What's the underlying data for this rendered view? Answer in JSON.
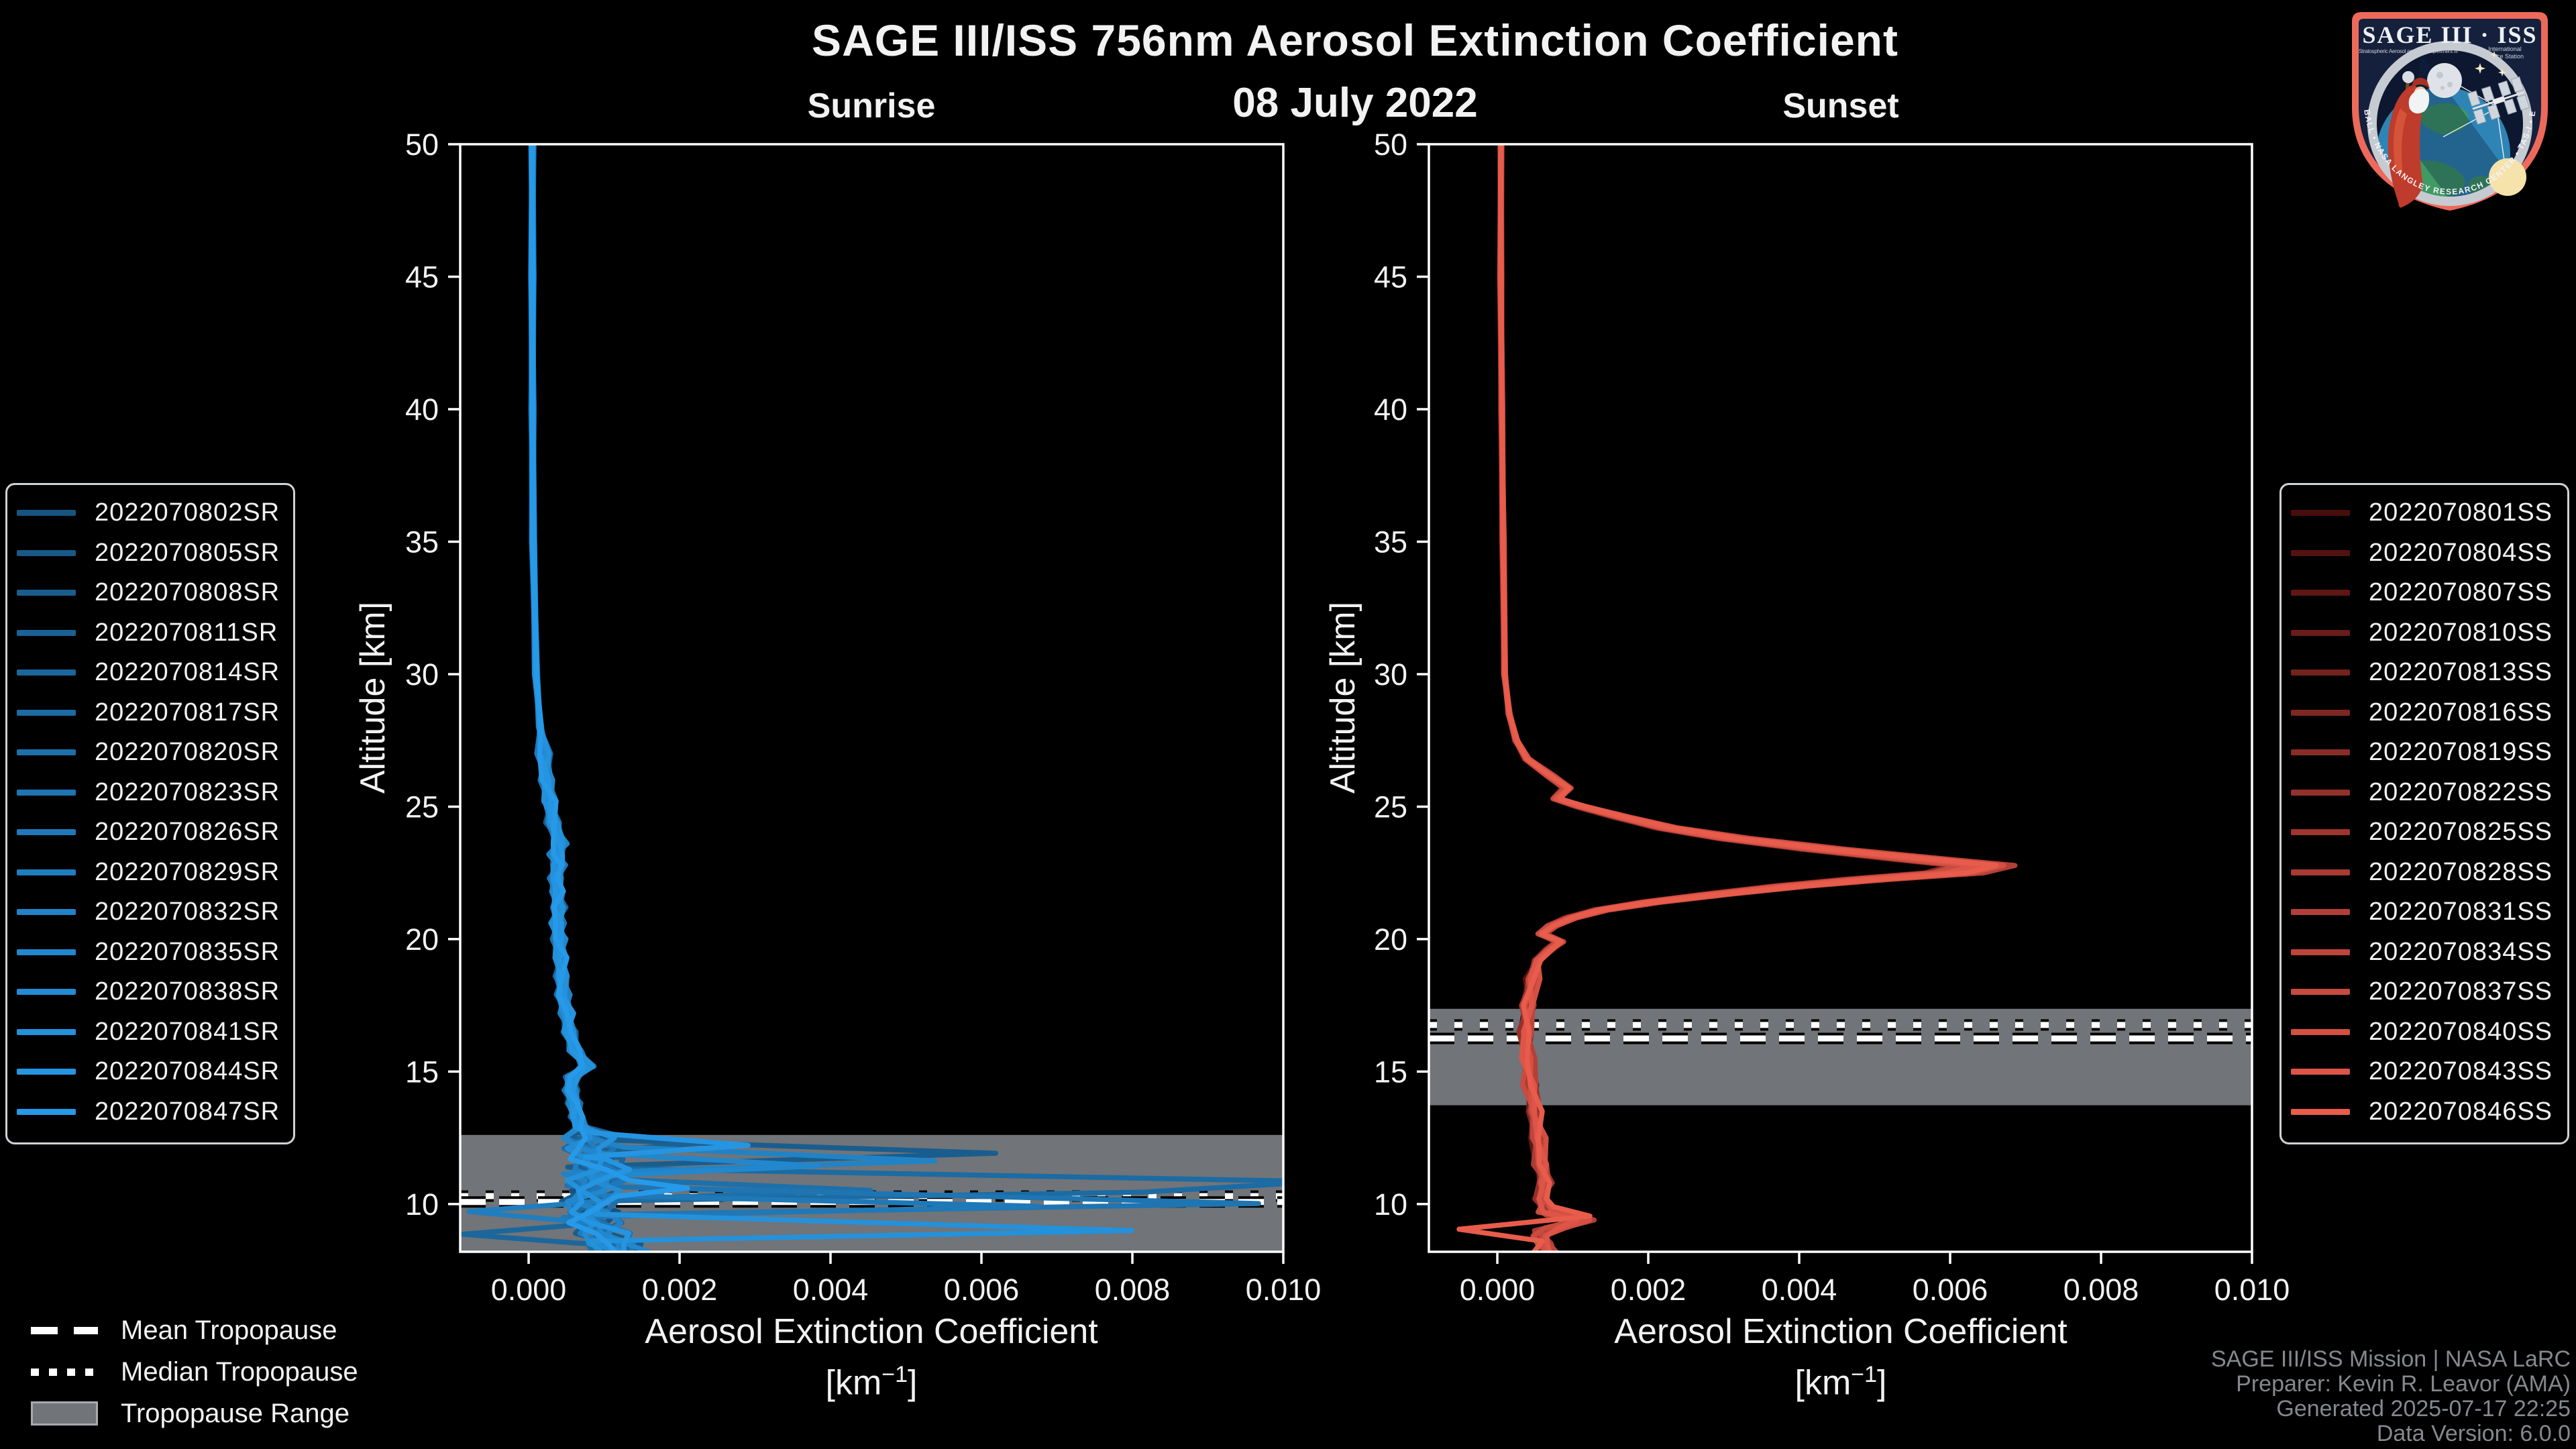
{
  "title": "SAGE III/ISS 756nm Aerosol Extinction Coefficient",
  "subtitle": "08 July 2022",
  "watermark": {
    "line1": "SAGE III/ISS Mission | NASA LaRC",
    "line2": "Preparer: Kevin R. Leavor (AMA)",
    "line3": "Generated 2025-07-17 22:25",
    "line4": "Data Version: 6.0.0"
  },
  "tropo_legend": {
    "items": [
      {
        "label": "Mean Tropopause"
      },
      {
        "label": "Median Tropopause"
      },
      {
        "label": "Tropopause Range"
      }
    ]
  },
  "logo": {
    "title": "SAGE III · ISS",
    "sub_left": "Stratospheric Aerosol and Gas Experiment III",
    "sub_right1": "International",
    "sub_right2": "Space Station",
    "ring_text": "BALL • NASA LANGLEY RESEARCH CENTER • TAS-I • ESA"
  },
  "axes": {
    "xlabel": "Aerosol Extinction Coefficient",
    "xunit_pre": "[km",
    "xunit_sup": "−1",
    "xunit_post": "]",
    "ylabel": "Altitude [km]"
  },
  "chart_data": [
    {
      "type": "line",
      "panel": "sunrise",
      "title": "Sunrise",
      "xlabel": "Aerosol Extinction Coefficient [km^-1]",
      "ylabel": "Altitude [km]",
      "xlim": [
        -0.000907,
        0.01
      ],
      "ylim": [
        8.2,
        50
      ],
      "x_tick_values": [
        0.0,
        0.002,
        0.004,
        0.006,
        0.008,
        0.01
      ],
      "x_tick_labels": [
        "0.000",
        "0.002",
        "0.004",
        "0.006",
        "0.008",
        "0.010"
      ],
      "y_tick_values": [
        10,
        15,
        20,
        25,
        30,
        35,
        40,
        45,
        50
      ],
      "y_tick_labels": [
        "10",
        "15",
        "20",
        "25",
        "30",
        "35",
        "40",
        "45",
        "50"
      ],
      "tropopause": {
        "mean": 10.08,
        "median": 10.3,
        "range": [
          8.2,
          12.61
        ]
      },
      "series": [
        {
          "label": "2022070802SR",
          "color": "#175480"
        },
        {
          "label": "2022070805SR",
          "color": "#185987"
        },
        {
          "label": "2022070808SR",
          "color": "#195d8e"
        },
        {
          "label": "2022070811SR",
          "color": "#1a6295"
        },
        {
          "label": "2022070814SR",
          "color": "#1b679c"
        },
        {
          "label": "2022070817SR",
          "color": "#1c6ba3"
        },
        {
          "label": "2022070820SR",
          "color": "#1d70aa"
        },
        {
          "label": "2022070823SR",
          "color": "#1e75b1"
        },
        {
          "label": "2022070826SR",
          "color": "#1f79b8"
        },
        {
          "label": "2022070829SR",
          "color": "#207ebf"
        },
        {
          "label": "2022070832SR",
          "color": "#2183c6"
        },
        {
          "label": "2022070835SR",
          "color": "#2287cd"
        },
        {
          "label": "2022070838SR",
          "color": "#238cd4"
        },
        {
          "label": "2022070841SR",
          "color": "#2491db"
        },
        {
          "label": "2022070844SR",
          "color": "#2595e2"
        },
        {
          "label": "2022070847SR",
          "color": "#269ae9"
        }
      ],
      "peak_scale": [
        1,
        1,
        1,
        1,
        1,
        1,
        1,
        1,
        1,
        1,
        1,
        1,
        1,
        1,
        1,
        1
      ],
      "jitter": {
        "hi": 1.5e-05,
        "mid": 6e-05,
        "lo": 0.00025,
        "hi_alt": 27,
        "lo_alt": 12.7
      },
      "base_profile": [
        [
          50,
          5e-05
        ],
        [
          45,
          5e-05
        ],
        [
          40,
          5e-05
        ],
        [
          35,
          6e-05
        ],
        [
          30,
          0.0001
        ],
        [
          28,
          0.00015
        ],
        [
          27,
          0.0002
        ],
        [
          26,
          0.00024
        ],
        [
          25.2,
          0.00028
        ],
        [
          24.4,
          0.00032
        ],
        [
          23.6,
          0.00042
        ],
        [
          23.2,
          0.00036
        ],
        [
          22.8,
          0.0004
        ],
        [
          22.3,
          0.00036
        ],
        [
          21.8,
          0.00038
        ],
        [
          21.2,
          0.0004
        ],
        [
          20.6,
          0.00038
        ],
        [
          20,
          0.0004
        ],
        [
          19.3,
          0.00042
        ],
        [
          18.6,
          0.00044
        ],
        [
          17.9,
          0.00046
        ],
        [
          17.2,
          0.0005
        ],
        [
          16.5,
          0.00054
        ],
        [
          15.8,
          0.00062
        ],
        [
          15.2,
          0.00078
        ],
        [
          14.8,
          0.00058
        ],
        [
          14.3,
          0.00056
        ],
        [
          13.8,
          0.0006
        ],
        [
          13.3,
          0.00064
        ],
        [
          12.9,
          0.0007
        ],
        [
          12.5,
          0.00078
        ],
        [
          12.1,
          0.00084
        ],
        [
          11.7,
          0.0009
        ],
        [
          11.3,
          0.00095
        ],
        [
          10.9,
          0.0009
        ],
        [
          10.5,
          0.00085
        ],
        [
          10.1,
          0.0008
        ],
        [
          9.7,
          0.00085
        ],
        [
          9.3,
          0.0009
        ],
        [
          8.9,
          0.001
        ],
        [
          8.5,
          0.0011
        ],
        [
          8.2,
          0.0012
        ]
      ],
      "excursions": {
        "2": [
          [
            12.45,
            0.001
          ],
          [
            11.92,
            0.0063
          ],
          [
            11.4,
            0.0007
          ]
        ],
        "3": [
          [
            12.6,
            0.0009
          ],
          [
            12.3,
            0.0022
          ],
          [
            12.0,
            0.0008
          ]
        ],
        "4": [
          [
            9.3,
            0.0008
          ],
          [
            8.86,
            -0.0011
          ],
          [
            8.52,
            0.0006
          ]
        ],
        "5": [
          [
            11.35,
            0.0009
          ],
          [
            10.85,
            0.0104
          ],
          [
            10.45,
            0.0079
          ],
          [
            10.12,
            0.0008
          ]
        ],
        "6": [
          [
            11.0,
            0.0008
          ],
          [
            10.52,
            0.0046
          ],
          [
            10.18,
            0.0007
          ]
        ],
        "7": [
          [
            10.7,
            0.0008
          ],
          [
            10.02,
            0.0097
          ],
          [
            9.58,
            0.0006
          ]
        ],
        "8": [
          [
            10.35,
            0.0008
          ],
          [
            9.92,
            0.0068
          ],
          [
            9.5,
            0.0007
          ]
        ],
        "9": [
          [
            10.12,
            0.0009
          ],
          [
            9.72,
            -0.0011
          ],
          [
            9.35,
            0.0006
          ]
        ],
        "10": [
          [
            12.15,
            0.001
          ],
          [
            11.63,
            0.0052
          ],
          [
            11.15,
            0.0007
          ]
        ],
        "11": [
          [
            11.9,
            0.0009
          ],
          [
            11.44,
            0.0036
          ],
          [
            11.05,
            0.0007
          ]
        ],
        "13": [
          [
            9.62,
            0.0008
          ],
          [
            9.0,
            0.0077
          ],
          [
            8.6,
            0.001
          ]
        ],
        "14": [
          [
            12.7,
            0.001
          ],
          [
            12.22,
            0.0029
          ],
          [
            11.78,
            0.0007
          ]
        ],
        "15": [
          [
            10.9,
            0.0011
          ],
          [
            10.6,
            0.002
          ],
          [
            10.3,
            0.001
          ]
        ]
      }
    },
    {
      "type": "line",
      "panel": "sunset",
      "title": "Sunset",
      "xlabel": "Aerosol Extinction Coefficient [km^-1]",
      "ylabel": "Altitude [km]",
      "xlim": [
        -0.000907,
        0.01
      ],
      "ylim": [
        8.2,
        50
      ],
      "x_tick_values": [
        0.0,
        0.002,
        0.004,
        0.006,
        0.008,
        0.01
      ],
      "x_tick_labels": [
        "0.000",
        "0.002",
        "0.004",
        "0.006",
        "0.008",
        "0.010"
      ],
      "y_tick_values": [
        10,
        15,
        20,
        25,
        30,
        35,
        40,
        45,
        50
      ],
      "y_tick_labels": [
        "10",
        "15",
        "20",
        "25",
        "30",
        "35",
        "40",
        "45",
        "50"
      ],
      "tropopause": {
        "mean": 16.25,
        "median": 16.76,
        "range": [
          13.73,
          17.37
        ]
      },
      "series": [
        {
          "label": "2022070801SS",
          "color": "#4a0d0d"
        },
        {
          "label": "2022070804SS",
          "color": "#551211"
        },
        {
          "label": "2022070807SS",
          "color": "#5f1715"
        },
        {
          "label": "2022070810SS",
          "color": "#6a1c19"
        },
        {
          "label": "2022070813SS",
          "color": "#74221e"
        },
        {
          "label": "2022070816SS",
          "color": "#7f2722"
        },
        {
          "label": "2022070819SS",
          "color": "#892c26"
        },
        {
          "label": "2022070822SS",
          "color": "#94312a"
        },
        {
          "label": "2022070825SS",
          "color": "#9e362e"
        },
        {
          "label": "2022070828SS",
          "color": "#a93b33"
        },
        {
          "label": "2022070831SS",
          "color": "#b34037"
        },
        {
          "label": "2022070834SS",
          "color": "#be453b"
        },
        {
          "label": "2022070837SS",
          "color": "#c84b3f"
        },
        {
          "label": "2022070840SS",
          "color": "#d35043"
        },
        {
          "label": "2022070843SS",
          "color": "#dd5548"
        },
        {
          "label": "2022070846SS",
          "color": "#e85c4c"
        }
      ],
      "peak_scale": [
        0.93,
        0.96,
        0.91,
        0.99,
        0.94,
        1.01,
        0.97,
        0.92,
        1.0,
        0.95,
        1.04,
        0.98,
        0.93,
        1.02,
        0.96,
        1.0
      ],
      "jitter": {
        "hi": 1e-05,
        "mid": 2e-05,
        "lo": 6e-05,
        "hi_alt": 26,
        "lo_alt": 19
      },
      "base_profile": [
        [
          50,
          5e-05
        ],
        [
          45,
          5e-05
        ],
        [
          40,
          6e-05
        ],
        [
          35,
          8e-05
        ],
        [
          30,
          0.0001
        ],
        [
          28.5,
          0.00016
        ],
        [
          27.5,
          0.00026
        ],
        [
          26.8,
          0.0004
        ],
        [
          26.2,
          0.0007
        ],
        [
          25.7,
          0.00095
        ],
        [
          25.3,
          0.0008
        ],
        [
          25.0,
          0.00115
        ],
        [
          24.6,
          0.0017
        ],
        [
          24.2,
          0.0023
        ],
        [
          23.8,
          0.0032
        ],
        [
          23.4,
          0.0044
        ],
        [
          23.0,
          0.0058
        ],
        [
          22.78,
          0.0066
        ],
        [
          22.5,
          0.0062
        ],
        [
          22.25,
          0.005
        ],
        [
          22.0,
          0.004
        ],
        [
          21.7,
          0.003
        ],
        [
          21.4,
          0.0021
        ],
        [
          21.1,
          0.0014
        ],
        [
          20.8,
          0.001
        ],
        [
          20.5,
          0.00075
        ],
        [
          20.2,
          0.0006
        ],
        [
          19.9,
          0.00085
        ],
        [
          19.6,
          0.0007
        ],
        [
          19.2,
          0.00055
        ],
        [
          18.5,
          0.00048
        ],
        [
          17.5,
          0.00042
        ],
        [
          16.5,
          0.0004
        ],
        [
          15.5,
          0.00042
        ],
        [
          14.5,
          0.00046
        ],
        [
          13.5,
          0.0005
        ],
        [
          12.5,
          0.00055
        ],
        [
          11.5,
          0.0006
        ],
        [
          10.8,
          0.00065
        ],
        [
          10.2,
          0.0006
        ],
        [
          9.7,
          0.0007
        ],
        [
          9.4,
          0.00115
        ],
        [
          9.1,
          0.0008
        ],
        [
          8.8,
          0.0006
        ],
        [
          8.5,
          0.00065
        ],
        [
          8.2,
          0.0007
        ]
      ],
      "excursions": {
        "9": [
          [
            9.6,
            0.0006
          ],
          [
            9.3,
            0.001
          ],
          [
            9.0,
            0.0006
          ]
        ],
        "12": [
          [
            9.7,
            0.0006
          ],
          [
            9.4,
            0.00115
          ],
          [
            9.1,
            0.0007
          ]
        ],
        "15": [
          [
            9.9,
            0.0007
          ],
          [
            9.55,
            0.00128
          ],
          [
            9.05,
            -0.00045
          ],
          [
            8.6,
            0.0006
          ],
          [
            8.2,
            0.0005
          ]
        ]
      }
    }
  ],
  "layout_note": {
    "band_color": "#717478"
  }
}
